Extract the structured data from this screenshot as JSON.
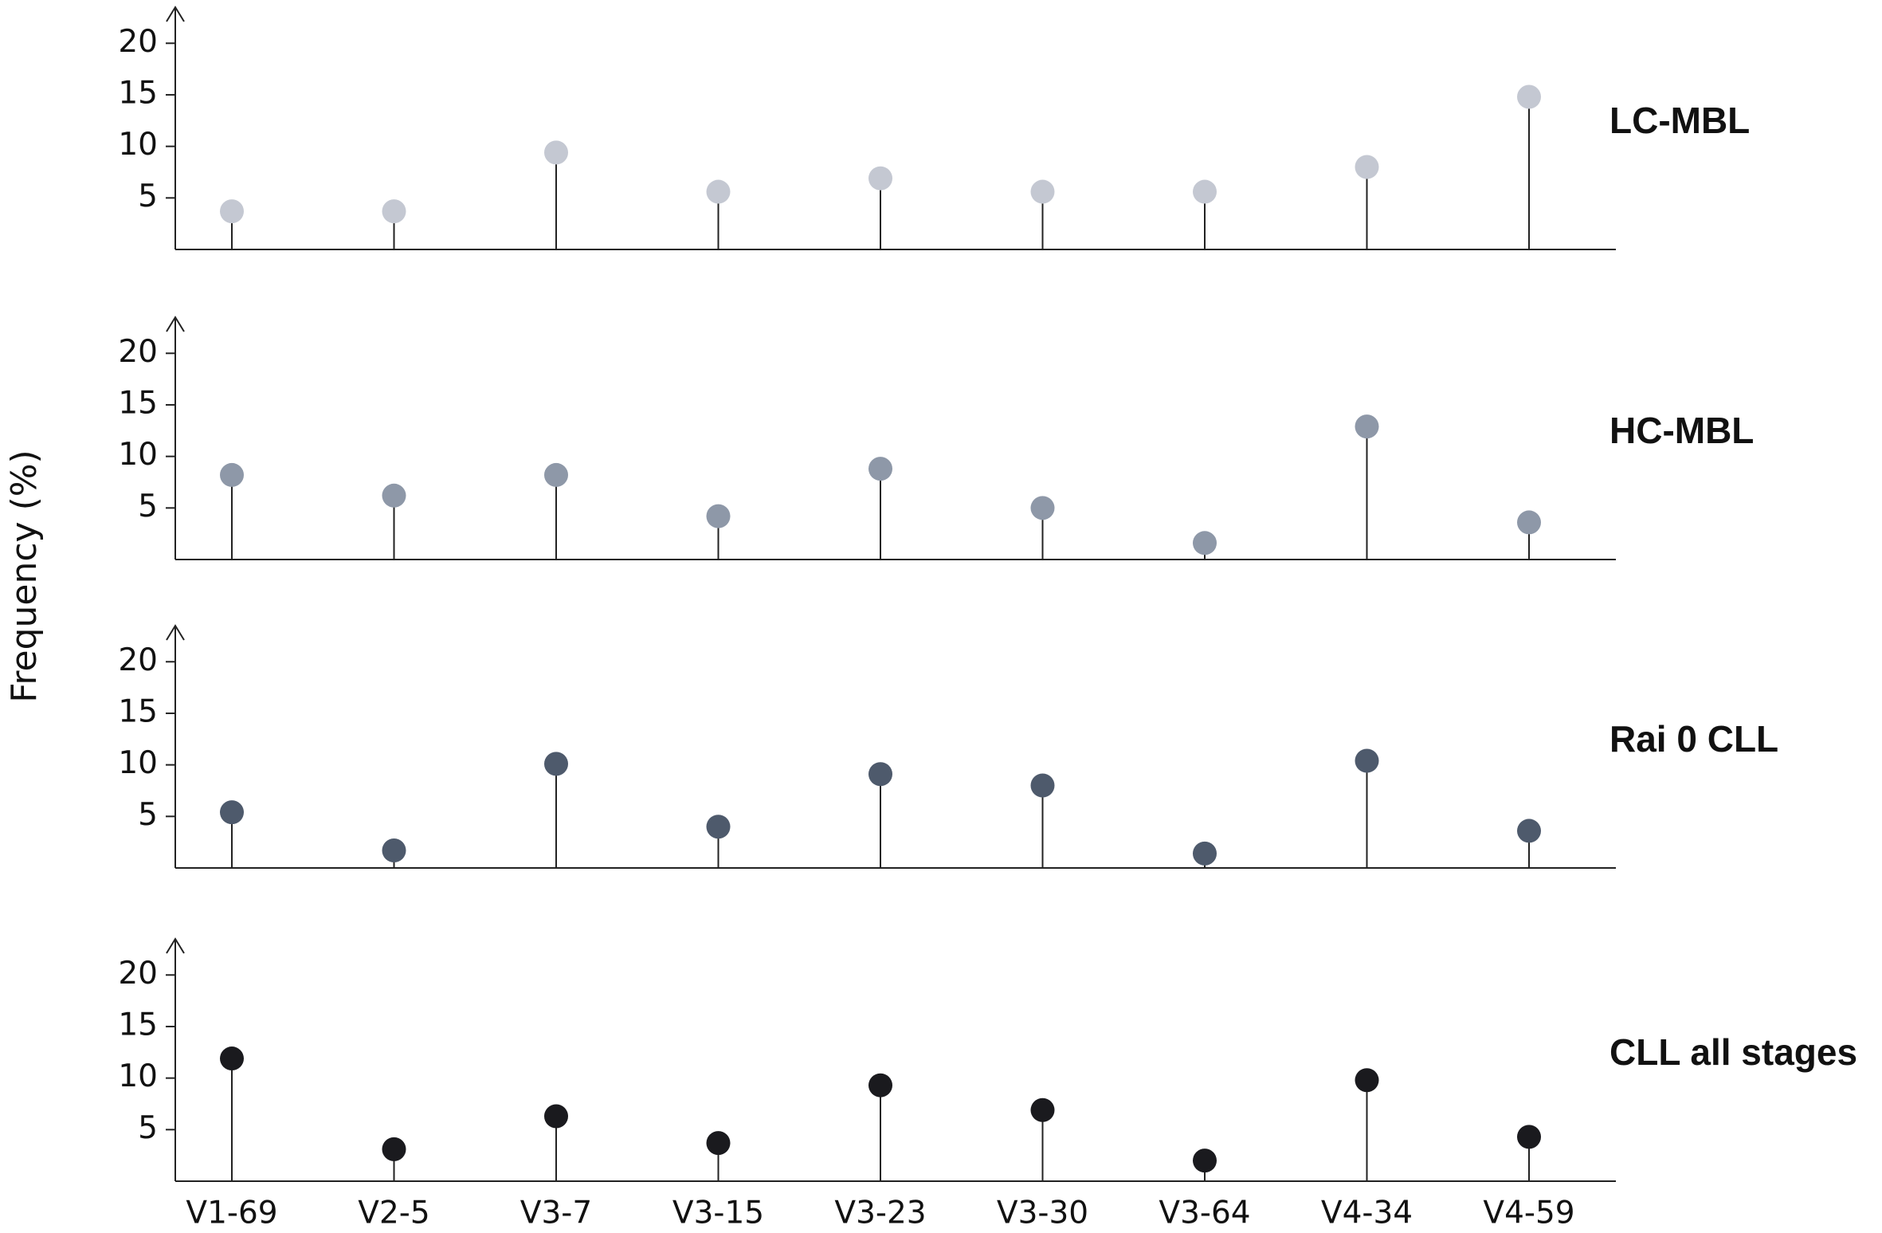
{
  "ylabel": "Frequency (%)",
  "chart_data": [
    {
      "type": "lollipop",
      "title": "LC-MBL",
      "color": "#c4c8d2",
      "values": [
        3.7,
        3.7,
        9.4,
        5.6,
        6.9,
        5.6,
        5.6,
        8.0,
        14.8
      ],
      "ylim": [
        0,
        23.5
      ],
      "yticks": [
        5,
        10,
        15,
        20
      ]
    },
    {
      "type": "lollipop",
      "title": "HC-MBL",
      "color": "#8e98a8",
      "values": [
        8.2,
        6.2,
        8.2,
        4.2,
        8.8,
        5.0,
        1.6,
        12.9,
        3.6
      ],
      "ylim": [
        0,
        23.5
      ],
      "yticks": [
        5,
        10,
        15,
        20
      ]
    },
    {
      "type": "lollipop",
      "title": "Rai 0 CLL",
      "color": "#4e5a6c",
      "values": [
        5.4,
        1.7,
        10.1,
        4.0,
        9.1,
        8.0,
        1.4,
        10.4,
        3.6
      ],
      "ylim": [
        0,
        23.5
      ],
      "yticks": [
        5,
        10,
        15,
        20
      ]
    },
    {
      "type": "lollipop",
      "title": "CLL all stages",
      "color": "#1a1a1e",
      "categories": [
        "V1-69",
        "V2-5",
        "V3-7",
        "V3-15",
        "V3-23",
        "V3-30",
        "V3-64",
        "V4-34",
        "V4-59"
      ],
      "values": [
        11.9,
        3.1,
        6.3,
        3.7,
        9.3,
        6.9,
        2.0,
        9.8,
        4.3
      ],
      "ylim": [
        0,
        23.5
      ],
      "yticks": [
        5,
        10,
        15,
        20
      ]
    }
  ]
}
